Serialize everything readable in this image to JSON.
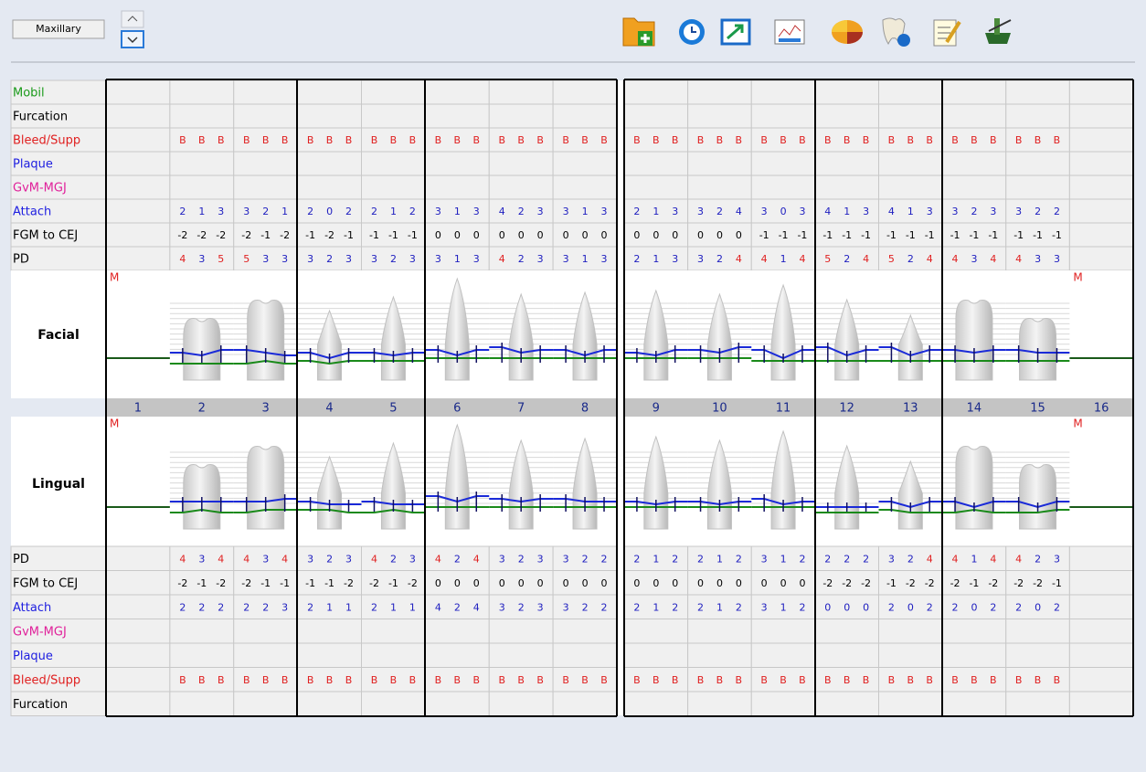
{
  "arch_selector": {
    "value": "Maxillary"
  },
  "missing_marker": "M",
  "tooth_numbers": [
    1,
    2,
    3,
    4,
    5,
    6,
    7,
    8,
    9,
    10,
    11,
    12,
    13,
    14,
    15,
    16
  ],
  "facial": {
    "label": "Facial",
    "rows": [
      {
        "label": "Mobil",
        "color": "#1a9a1a"
      },
      {
        "label": "Furcation",
        "color": "#000000"
      },
      {
        "label": "Bleed/Supp",
        "color": "#e02020",
        "value_color": "#e02020",
        "cells": [
          null,
          [
            "B",
            "B",
            "B"
          ],
          [
            "B",
            "B",
            "B"
          ],
          [
            "B",
            "B",
            "B"
          ],
          [
            "B",
            "B",
            "B"
          ],
          [
            "B",
            "B",
            "B"
          ],
          [
            "B",
            "B",
            "B"
          ],
          [
            "B",
            "B",
            "B"
          ],
          [
            "B",
            "B",
            "B"
          ],
          [
            "B",
            "B",
            "B"
          ],
          [
            "B",
            "B",
            "B"
          ],
          [
            "B",
            "B",
            "B"
          ],
          [
            "B",
            "B",
            "B"
          ],
          [
            "B",
            "B",
            "B"
          ],
          [
            "B",
            "B",
            "B"
          ],
          null
        ]
      },
      {
        "label": "Plaque",
        "color": "#2020e0"
      },
      {
        "label": "GvM-MGJ",
        "color": "#e0209a"
      },
      {
        "label": "Attach",
        "color": "#2020e0",
        "value_color": "#2020c0",
        "cells": [
          null,
          [
            2,
            1,
            3
          ],
          [
            3,
            2,
            1
          ],
          [
            2,
            0,
            2
          ],
          [
            2,
            1,
            2
          ],
          [
            3,
            1,
            3
          ],
          [
            4,
            2,
            3
          ],
          [
            3,
            1,
            3
          ],
          [
            2,
            1,
            3
          ],
          [
            3,
            2,
            4
          ],
          [
            3,
            0,
            3
          ],
          [
            4,
            1,
            3
          ],
          [
            4,
            1,
            3
          ],
          [
            3,
            2,
            3
          ],
          [
            3,
            2,
            2
          ],
          null
        ]
      },
      {
        "label": "FGM to CEJ",
        "color": "#000000",
        "value_color": "#000000",
        "cells": [
          null,
          [
            -2,
            -2,
            -2
          ],
          [
            -2,
            -1,
            -2
          ],
          [
            -1,
            -2,
            -1
          ],
          [
            -1,
            -1,
            -1
          ],
          [
            0,
            0,
            0
          ],
          [
            0,
            0,
            0
          ],
          [
            0,
            0,
            0
          ],
          [
            0,
            0,
            0
          ],
          [
            0,
            0,
            0
          ],
          [
            -1,
            -1,
            -1
          ],
          [
            -1,
            -1,
            -1
          ],
          [
            -1,
            -1,
            -1
          ],
          [
            -1,
            -1,
            -1
          ],
          [
            -1,
            -1,
            -1
          ],
          null
        ]
      },
      {
        "label": "PD",
        "color": "#000000",
        "cells": [
          null,
          [
            4,
            3,
            5
          ],
          [
            5,
            3,
            3
          ],
          [
            3,
            2,
            3
          ],
          [
            3,
            2,
            3
          ],
          [
            3,
            1,
            3
          ],
          [
            4,
            2,
            3
          ],
          [
            3,
            1,
            3
          ],
          [
            2,
            1,
            3
          ],
          [
            3,
            2,
            4
          ],
          [
            4,
            1,
            4
          ],
          [
            5,
            2,
            4
          ],
          [
            5,
            2,
            4
          ],
          [
            4,
            3,
            4
          ],
          [
            4,
            3,
            3
          ],
          null
        ]
      }
    ]
  },
  "lingual": {
    "label": "Lingual",
    "rows": [
      {
        "label": "PD",
        "color": "#000000",
        "cells": [
          null,
          [
            4,
            3,
            4
          ],
          [
            4,
            3,
            4
          ],
          [
            3,
            2,
            3
          ],
          [
            4,
            2,
            3
          ],
          [
            4,
            2,
            4
          ],
          [
            3,
            2,
            3
          ],
          [
            3,
            2,
            2
          ],
          [
            2,
            1,
            2
          ],
          [
            2,
            1,
            2
          ],
          [
            3,
            1,
            2
          ],
          [
            2,
            2,
            2
          ],
          [
            3,
            2,
            4
          ],
          [
            4,
            1,
            4
          ],
          [
            4,
            2,
            3
          ],
          null
        ]
      },
      {
        "label": "FGM to CEJ",
        "color": "#000000",
        "value_color": "#000000",
        "cells": [
          null,
          [
            -2,
            -1,
            -2
          ],
          [
            -2,
            -1,
            -1
          ],
          [
            -1,
            -1,
            -2
          ],
          [
            -2,
            -1,
            -2
          ],
          [
            0,
            0,
            0
          ],
          [
            0,
            0,
            0
          ],
          [
            0,
            0,
            0
          ],
          [
            0,
            0,
            0
          ],
          [
            0,
            0,
            0
          ],
          [
            0,
            0,
            0
          ],
          [
            -2,
            -2,
            -2
          ],
          [
            -1,
            -2,
            -2
          ],
          [
            -2,
            -1,
            -2
          ],
          [
            -2,
            -2,
            -1
          ],
          null
        ]
      },
      {
        "label": "Attach",
        "color": "#2020e0",
        "value_color": "#2020c0",
        "cells": [
          null,
          [
            2,
            2,
            2
          ],
          [
            2,
            2,
            3
          ],
          [
            2,
            1,
            1
          ],
          [
            2,
            1,
            1
          ],
          [
            4,
            2,
            4
          ],
          [
            3,
            2,
            3
          ],
          [
            3,
            2,
            2
          ],
          [
            2,
            1,
            2
          ],
          [
            2,
            1,
            2
          ],
          [
            3,
            1,
            2
          ],
          [
            0,
            0,
            0
          ],
          [
            2,
            0,
            2
          ],
          [
            2,
            0,
            2
          ],
          [
            2,
            0,
            2
          ],
          null
        ]
      },
      {
        "label": "GvM-MGJ",
        "color": "#e0209a"
      },
      {
        "label": "Plaque",
        "color": "#2020e0"
      },
      {
        "label": "Bleed/Supp",
        "color": "#e02020",
        "value_color": "#e02020",
        "cells": [
          null,
          [
            "B",
            "B",
            "B"
          ],
          [
            "B",
            "B",
            "B"
          ],
          [
            "B",
            "B",
            "B"
          ],
          [
            "B",
            "B",
            "B"
          ],
          [
            "B",
            "B",
            "B"
          ],
          [
            "B",
            "B",
            "B"
          ],
          [
            "B",
            "B",
            "B"
          ],
          [
            "B",
            "B",
            "B"
          ],
          [
            "B",
            "B",
            "B"
          ],
          [
            "B",
            "B",
            "B"
          ],
          [
            "B",
            "B",
            "B"
          ],
          [
            "B",
            "B",
            "B"
          ],
          [
            "B",
            "B",
            "B"
          ],
          [
            "B",
            "B",
            "B"
          ],
          null
        ]
      },
      {
        "label": "Furcation",
        "color": "#000000"
      }
    ]
  }
}
